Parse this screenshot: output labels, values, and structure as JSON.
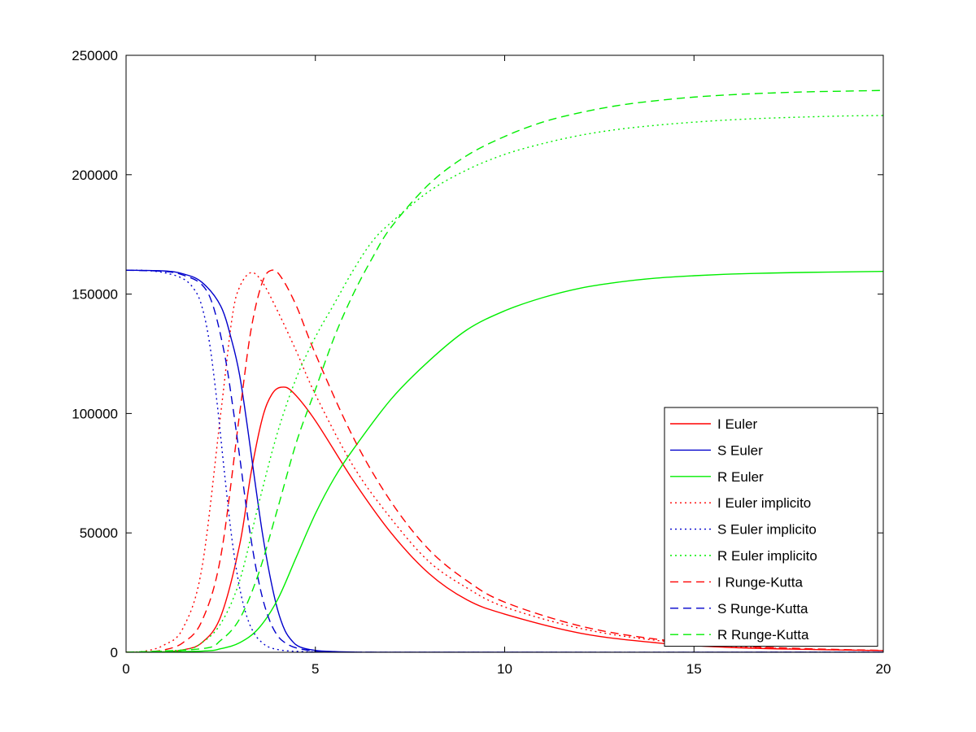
{
  "chart_data": {
    "type": "line",
    "xlim": [
      0,
      20
    ],
    "ylim": [
      0,
      250000
    ],
    "x_ticks": [
      0,
      5,
      10,
      15,
      20
    ],
    "y_ticks": [
      0,
      50000,
      100000,
      150000,
      200000,
      250000
    ],
    "legend_position": "bottom-right",
    "grid": false,
    "series": [
      {
        "name": "I Euler",
        "color": "#ff0000",
        "dash": "solid",
        "points": [
          [
            0,
            0
          ],
          [
            0.5,
            30
          ],
          [
            1,
            200
          ],
          [
            1.5,
            1000
          ],
          [
            2,
            4000
          ],
          [
            2.5,
            15000
          ],
          [
            3,
            45000
          ],
          [
            3.3,
            75000
          ],
          [
            3.6,
            98000
          ],
          [
            3.85,
            108000
          ],
          [
            4.1,
            111000
          ],
          [
            4.4,
            109000
          ],
          [
            5,
            97000
          ],
          [
            6,
            72000
          ],
          [
            7,
            50000
          ],
          [
            8,
            33000
          ],
          [
            9,
            22000
          ],
          [
            10,
            16000
          ],
          [
            12,
            8000
          ],
          [
            14,
            4000
          ],
          [
            16,
            2000
          ],
          [
            18,
            1200
          ],
          [
            20,
            700
          ]
        ]
      },
      {
        "name": "S Euler",
        "color": "#0000cc",
        "dash": "solid",
        "points": [
          [
            0,
            160000
          ],
          [
            1,
            159700
          ],
          [
            1.5,
            158500
          ],
          [
            2,
            155000
          ],
          [
            2.5,
            145000
          ],
          [
            2.8,
            130000
          ],
          [
            3,
            116000
          ],
          [
            3.2,
            95000
          ],
          [
            3.4,
            72000
          ],
          [
            3.6,
            50000
          ],
          [
            3.8,
            32000
          ],
          [
            4,
            18000
          ],
          [
            4.2,
            9000
          ],
          [
            4.4,
            4500
          ],
          [
            4.6,
            2200
          ],
          [
            5,
            800
          ],
          [
            5.5,
            300
          ],
          [
            6,
            100
          ],
          [
            7,
            0
          ],
          [
            20,
            0
          ]
        ]
      },
      {
        "name": "R Euler",
        "color": "#00ee00",
        "dash": "solid",
        "points": [
          [
            0,
            0
          ],
          [
            2,
            500
          ],
          [
            2.5,
            1500
          ],
          [
            3,
            4000
          ],
          [
            3.5,
            10000
          ],
          [
            4,
            22000
          ],
          [
            4.5,
            40000
          ],
          [
            5,
            58000
          ],
          [
            5.5,
            73000
          ],
          [
            6,
            85000
          ],
          [
            7,
            106000
          ],
          [
            8,
            122000
          ],
          [
            9,
            135000
          ],
          [
            10,
            143000
          ],
          [
            11,
            148500
          ],
          [
            12,
            152500
          ],
          [
            13,
            155000
          ],
          [
            14,
            156700
          ],
          [
            15,
            157700
          ],
          [
            16,
            158400
          ],
          [
            17,
            158800
          ],
          [
            18,
            159100
          ],
          [
            19,
            159300
          ],
          [
            20,
            159500
          ]
        ]
      },
      {
        "name": "I Euler implicito",
        "color": "#ff0000",
        "dash": "dot",
        "points": [
          [
            0,
            0
          ],
          [
            0.5,
            500
          ],
          [
            1,
            3000
          ],
          [
            1.5,
            10000
          ],
          [
            2,
            35000
          ],
          [
            2.5,
            100000
          ],
          [
            2.8,
            140000
          ],
          [
            3,
            153000
          ],
          [
            3.3,
            159000
          ],
          [
            3.6,
            155000
          ],
          [
            4,
            143000
          ],
          [
            4.5,
            126000
          ],
          [
            5,
            108000
          ],
          [
            6,
            78000
          ],
          [
            7,
            56000
          ],
          [
            8,
            38000
          ],
          [
            9,
            27000
          ],
          [
            10,
            19000
          ],
          [
            12,
            10000
          ],
          [
            14,
            5000
          ],
          [
            16,
            2500
          ],
          [
            18,
            1300
          ],
          [
            20,
            700
          ]
        ]
      },
      {
        "name": "S Euler implicito",
        "color": "#0000cc",
        "dash": "dot",
        "points": [
          [
            0,
            160000
          ],
          [
            0.5,
            159900
          ],
          [
            1,
            159000
          ],
          [
            1.5,
            156500
          ],
          [
            1.8,
            152000
          ],
          [
            2,
            145000
          ],
          [
            2.2,
            130000
          ],
          [
            2.4,
            105000
          ],
          [
            2.6,
            75000
          ],
          [
            2.8,
            47000
          ],
          [
            3,
            27000
          ],
          [
            3.2,
            14500
          ],
          [
            3.4,
            7500
          ],
          [
            3.6,
            4000
          ],
          [
            3.8,
            2000
          ],
          [
            4.2,
            700
          ],
          [
            5,
            150
          ],
          [
            6,
            0
          ],
          [
            20,
            0
          ]
        ]
      },
      {
        "name": "R Euler implicito",
        "color": "#00ee00",
        "dash": "dot",
        "points": [
          [
            0,
            0
          ],
          [
            1.5,
            1000
          ],
          [
            2,
            4000
          ],
          [
            2.5,
            12000
          ],
          [
            3,
            30000
          ],
          [
            3.5,
            62000
          ],
          [
            4,
            92000
          ],
          [
            4.5,
            115000
          ],
          [
            5,
            132000
          ],
          [
            5.5,
            146000
          ],
          [
            6,
            160000
          ],
          [
            6.5,
            172000
          ],
          [
            7,
            180000
          ],
          [
            8,
            193000
          ],
          [
            9,
            202000
          ],
          [
            10,
            208500
          ],
          [
            11,
            213000
          ],
          [
            12,
            216500
          ],
          [
            13,
            219000
          ],
          [
            14,
            220700
          ],
          [
            15,
            222000
          ],
          [
            16,
            223000
          ],
          [
            17,
            223700
          ],
          [
            18,
            224200
          ],
          [
            19,
            224600
          ],
          [
            20,
            224800
          ]
        ]
      },
      {
        "name": "I Runge-Kutta",
        "color": "#ff0000",
        "dash": "dash",
        "points": [
          [
            0,
            0
          ],
          [
            0.5,
            150
          ],
          [
            1,
            1000
          ],
          [
            1.5,
            4000
          ],
          [
            2,
            13000
          ],
          [
            2.5,
            40000
          ],
          [
            3,
            100000
          ],
          [
            3.3,
            135000
          ],
          [
            3.6,
            155000
          ],
          [
            3.85,
            160000
          ],
          [
            4.1,
            157000
          ],
          [
            4.5,
            145000
          ],
          [
            5,
            125000
          ],
          [
            6,
            90000
          ],
          [
            7,
            63000
          ],
          [
            8,
            43000
          ],
          [
            9,
            30000
          ],
          [
            10,
            21000
          ],
          [
            12,
            11000
          ],
          [
            14,
            5500
          ],
          [
            16,
            2800
          ],
          [
            18,
            1500
          ],
          [
            20,
            800
          ]
        ]
      },
      {
        "name": "S Runge-Kutta",
        "color": "#0000cc",
        "dash": "dash",
        "points": [
          [
            0,
            160000
          ],
          [
            1,
            159500
          ],
          [
            1.5,
            158000
          ],
          [
            2,
            154000
          ],
          [
            2.3,
            145000
          ],
          [
            2.6,
            125000
          ],
          [
            2.8,
            105000
          ],
          [
            3,
            82000
          ],
          [
            3.2,
            58000
          ],
          [
            3.4,
            38000
          ],
          [
            3.6,
            23000
          ],
          [
            3.8,
            13000
          ],
          [
            4,
            7000
          ],
          [
            4.2,
            4000
          ],
          [
            4.5,
            1800
          ],
          [
            5,
            500
          ],
          [
            5.5,
            150
          ],
          [
            6,
            0
          ],
          [
            20,
            0
          ]
        ]
      },
      {
        "name": "R Runge-Kutta",
        "color": "#00ee00",
        "dash": "dash",
        "points": [
          [
            0,
            0
          ],
          [
            2,
            1500
          ],
          [
            2.5,
            5000
          ],
          [
            3,
            14000
          ],
          [
            3.5,
            33000
          ],
          [
            4,
            60000
          ],
          [
            4.5,
            88000
          ],
          [
            5,
            110000
          ],
          [
            5.5,
            132000
          ],
          [
            6,
            150000
          ],
          [
            6.5,
            165000
          ],
          [
            7,
            178000
          ],
          [
            8,
            196000
          ],
          [
            9,
            208000
          ],
          [
            10,
            216000
          ],
          [
            11,
            222000
          ],
          [
            12,
            226000
          ],
          [
            13,
            229000
          ],
          [
            14,
            231000
          ],
          [
            15,
            232500
          ],
          [
            16,
            233500
          ],
          [
            17,
            234200
          ],
          [
            18,
            234700
          ],
          [
            19,
            235000
          ],
          [
            20,
            235300
          ]
        ]
      }
    ]
  }
}
